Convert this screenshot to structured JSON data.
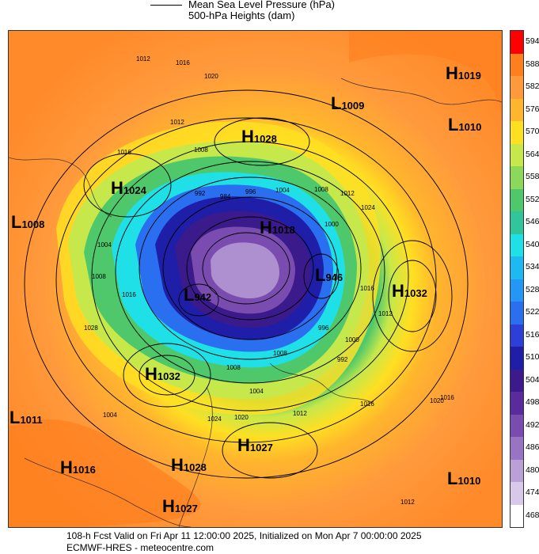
{
  "legend": {
    "line1": "Mean Sea Level Pressure (hPa)",
    "line2": "500-hPa Heights (dam)"
  },
  "colorbar": {
    "levels": [
      "594",
      "588",
      "582",
      "576",
      "570",
      "564",
      "558",
      "552",
      "546",
      "540",
      "534",
      "528",
      "522",
      "516",
      "510",
      "504",
      "498",
      "492",
      "486",
      "480",
      "474",
      "468"
    ],
    "colors": [
      "#ff0000",
      "#ff7f1e",
      "#ff9a3c",
      "#ffb52d",
      "#ffdf22",
      "#c7e84a",
      "#8cd95a",
      "#4ec86a",
      "#30c59a",
      "#1ee0e6",
      "#1cb9f2",
      "#2496f5",
      "#2a6ff0",
      "#2e3fd8",
      "#1e1ea8",
      "#3b1a8c",
      "#5b2a9c",
      "#7a4cb0",
      "#9a74c4",
      "#bba0d8",
      "#d8c8ea",
      "#ffffff"
    ]
  },
  "pressure_centers": [
    {
      "kind": "H",
      "value": "1019"
    },
    {
      "kind": "L",
      "value": "1009"
    },
    {
      "kind": "L",
      "value": "1010"
    },
    {
      "kind": "H",
      "value": "1028"
    },
    {
      "kind": "H",
      "value": "1024"
    },
    {
      "kind": "L",
      "value": "1008"
    },
    {
      "kind": "H",
      "value": "1018"
    },
    {
      "kind": "L",
      "value": "946"
    },
    {
      "kind": "L",
      "value": "942"
    },
    {
      "kind": "H",
      "value": "1032"
    },
    {
      "kind": "H",
      "value": "1032"
    },
    {
      "kind": "L",
      "value": "1011"
    },
    {
      "kind": "H",
      "value": "1027"
    },
    {
      "kind": "H",
      "value": "1016"
    },
    {
      "kind": "H",
      "value": "1028"
    },
    {
      "kind": "L",
      "value": "1010"
    },
    {
      "kind": "H",
      "value": "1027"
    }
  ],
  "isobar_labels": [
    "1012",
    "1016",
    "1020",
    "1012",
    "1016",
    "1008",
    "992",
    "984",
    "996",
    "1004",
    "1008",
    "1016",
    "1028",
    "1004",
    "1008",
    "1000",
    "1012",
    "1024",
    "992",
    "996",
    "1000",
    "1004",
    "1008",
    "1012",
    "1016",
    "1020",
    "1024",
    "1020",
    "1016",
    "1012",
    "1004",
    "1008",
    "1016",
    "1012"
  ],
  "footer": {
    "line1": "108-h Fcst Valid on Fri Apr 11 12:00:00 2025, Initialized on Mon Apr  7 00:00:00 2025",
    "line2": "ECMWF-HRES  - meteocentre.com"
  }
}
